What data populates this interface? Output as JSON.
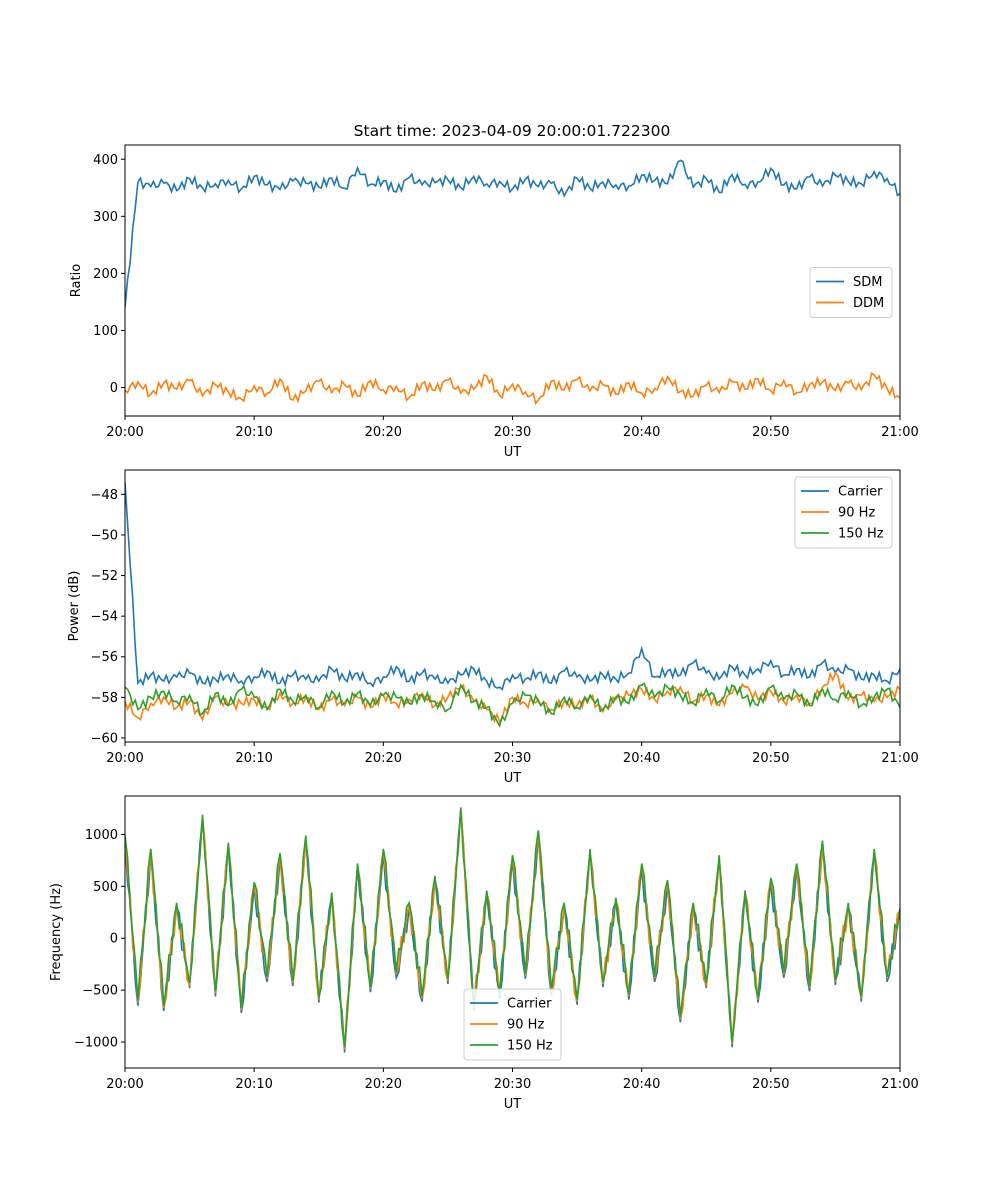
{
  "title": "Start time: 2023-04-09 20:00:01.722300",
  "colors": {
    "blue": "#1f77b4",
    "orange": "#ff7f0e",
    "green": "#2ca02c"
  },
  "chart_data": [
    {
      "type": "line",
      "xlabel": "UT",
      "ylabel": "Ratio",
      "xlim": [
        "20:00",
        "21:00"
      ],
      "ylim": [
        -50,
        425
      ],
      "xticks": [
        "20:00",
        "20:10",
        "20:20",
        "20:30",
        "20:40",
        "20:50",
        "21:00"
      ],
      "yticks": [
        0,
        100,
        200,
        300,
        400
      ],
      "legend": "center-right",
      "x": [
        "20:00",
        "20:01",
        "20:02",
        "20:03",
        "20:04",
        "20:05",
        "20:06",
        "20:07",
        "20:08",
        "20:09",
        "20:10",
        "20:11",
        "20:12",
        "20:13",
        "20:14",
        "20:15",
        "20:16",
        "20:17",
        "20:18",
        "20:19",
        "20:20",
        "20:21",
        "20:22",
        "20:23",
        "20:24",
        "20:25",
        "20:26",
        "20:27",
        "20:28",
        "20:29",
        "20:30",
        "20:31",
        "20:32",
        "20:33",
        "20:34",
        "20:35",
        "20:36",
        "20:37",
        "20:38",
        "20:39",
        "20:40",
        "20:41",
        "20:42",
        "20:43",
        "20:44",
        "20:45",
        "20:46",
        "20:47",
        "20:48",
        "20:49",
        "20:50",
        "20:51",
        "20:52",
        "20:53",
        "20:54",
        "20:55",
        "20:56",
        "20:57",
        "20:58",
        "20:59",
        "21:00"
      ],
      "series": [
        {
          "name": "SDM",
          "color": "#1f77b4",
          "values": [
            140,
            360,
            352,
            358,
            345,
            366,
            350,
            357,
            363,
            348,
            370,
            355,
            347,
            362,
            358,
            351,
            367,
            349,
            385,
            356,
            362,
            343,
            368,
            355,
            359,
            364,
            350,
            370,
            357,
            361,
            348,
            365,
            352,
            358,
            336,
            367,
            349,
            360,
            355,
            353,
            372,
            363,
            357,
            398,
            351,
            366,
            342,
            373,
            356,
            360,
            384,
            355,
            348,
            369,
            353,
            372,
            361,
            357,
            378,
            366,
            340
          ]
        },
        {
          "name": "DDM",
          "color": "#ff7f0e",
          "values": [
            -5,
            10,
            -12,
            8,
            -3,
            12,
            -15,
            5,
            -8,
            -20,
            3,
            -10,
            15,
            -22,
            -6,
            11,
            -9,
            5,
            -15,
            12,
            -4,
            2,
            -18,
            7,
            -5,
            13,
            -10,
            -3,
            20,
            -14,
            6,
            -8,
            -22,
            11,
            -4,
            14,
            -6,
            5,
            -12,
            8,
            -10,
            -2,
            19,
            -7,
            -15,
            4,
            -9,
            10,
            -3,
            15,
            -6,
            12,
            -9,
            5,
            10,
            -5,
            8,
            -4,
            22,
            -2,
            -18
          ]
        }
      ]
    },
    {
      "type": "line",
      "xlabel": "UT",
      "ylabel": "Power (dB)",
      "xlim": [
        "20:00",
        "21:00"
      ],
      "ylim": [
        -60.2,
        -46.8
      ],
      "xticks": [
        "20:00",
        "20:10",
        "20:20",
        "20:30",
        "20:40",
        "20:50",
        "21:00"
      ],
      "yticks": [
        -48,
        -50,
        -52,
        -54,
        -56,
        -58,
        -60
      ],
      "legend": "top-right",
      "x": [
        "20:00",
        "20:01",
        "20:02",
        "20:03",
        "20:04",
        "20:05",
        "20:06",
        "20:07",
        "20:08",
        "20:09",
        "20:10",
        "20:11",
        "20:12",
        "20:13",
        "20:14",
        "20:15",
        "20:16",
        "20:17",
        "20:18",
        "20:19",
        "20:20",
        "20:21",
        "20:22",
        "20:23",
        "20:24",
        "20:25",
        "20:26",
        "20:27",
        "20:28",
        "20:29",
        "20:30",
        "20:31",
        "20:32",
        "20:33",
        "20:34",
        "20:35",
        "20:36",
        "20:37",
        "20:38",
        "20:39",
        "20:40",
        "20:41",
        "20:42",
        "20:43",
        "20:44",
        "20:45",
        "20:46",
        "20:47",
        "20:48",
        "20:49",
        "20:50",
        "20:51",
        "20:52",
        "20:53",
        "20:54",
        "20:55",
        "20:56",
        "20:57",
        "20:58",
        "20:59",
        "21:00"
      ],
      "series": [
        {
          "name": "Carrier",
          "color": "#1f77b4",
          "values": [
            -47.4,
            -57.3,
            -56.9,
            -57.2,
            -57.0,
            -56.8,
            -57.3,
            -57.1,
            -56.9,
            -57.2,
            -57.0,
            -56.7,
            -57.3,
            -56.9,
            -57.1,
            -57.2,
            -56.6,
            -57.1,
            -56.8,
            -57.3,
            -57.0,
            -56.5,
            -57.2,
            -56.8,
            -57.1,
            -57.3,
            -56.9,
            -56.6,
            -57.2,
            -57.5,
            -56.9,
            -57.1,
            -56.8,
            -57.3,
            -56.7,
            -57.0,
            -57.2,
            -56.9,
            -57.1,
            -56.8,
            -55.6,
            -57.0,
            -56.7,
            -56.9,
            -56.3,
            -56.8,
            -57.1,
            -56.5,
            -56.9,
            -56.6,
            -56.2,
            -56.9,
            -56.6,
            -57.0,
            -56.3,
            -56.8,
            -56.6,
            -57.1,
            -56.9,
            -57.2,
            -56.6
          ]
        },
        {
          "name": "90 Hz",
          "color": "#ff7f0e",
          "values": [
            -58.2,
            -59.0,
            -58.3,
            -58.0,
            -58.5,
            -58.2,
            -59.1,
            -58.0,
            -58.4,
            -58.3,
            -58.1,
            -58.5,
            -57.8,
            -58.3,
            -58.0,
            -58.6,
            -58.1,
            -58.4,
            -58.0,
            -58.5,
            -57.9,
            -58.3,
            -58.1,
            -57.8,
            -58.4,
            -58.0,
            -57.5,
            -58.2,
            -58.6,
            -59.2,
            -58.0,
            -58.3,
            -58.1,
            -58.6,
            -58.2,
            -58.4,
            -58.0,
            -58.7,
            -58.1,
            -57.9,
            -57.6,
            -58.1,
            -57.7,
            -57.5,
            -58.2,
            -57.9,
            -58.4,
            -57.8,
            -57.5,
            -58.1,
            -57.7,
            -58.2,
            -57.9,
            -58.3,
            -57.5,
            -56.8,
            -58.1,
            -57.9,
            -58.2,
            -58.0,
            -57.6
          ]
        },
        {
          "name": "150 Hz",
          "color": "#2ca02c",
          "values": [
            -57.5,
            -58.6,
            -58.0,
            -57.7,
            -58.2,
            -57.9,
            -58.8,
            -57.8,
            -58.4,
            -57.6,
            -58.0,
            -58.6,
            -57.6,
            -58.2,
            -57.9,
            -58.5,
            -57.7,
            -58.3,
            -57.8,
            -58.4,
            -57.9,
            -58.0,
            -58.3,
            -57.9,
            -58.2,
            -58.6,
            -57.4,
            -58.2,
            -58.5,
            -59.4,
            -58.3,
            -57.9,
            -58.2,
            -58.8,
            -58.0,
            -58.5,
            -57.9,
            -58.6,
            -58.0,
            -58.3,
            -57.4,
            -58.0,
            -57.5,
            -57.9,
            -58.3,
            -57.6,
            -58.2,
            -57.4,
            -58.0,
            -58.4,
            -57.5,
            -58.1,
            -57.8,
            -58.4,
            -57.6,
            -58.1,
            -57.7,
            -58.4,
            -58.0,
            -57.6,
            -58.5
          ]
        }
      ]
    },
    {
      "type": "line",
      "xlabel": "UT",
      "ylabel": "Frequency (Hz)",
      "xlim": [
        "20:00",
        "21:00"
      ],
      "ylim": [
        -1250,
        1370
      ],
      "xticks": [
        "20:00",
        "20:10",
        "20:20",
        "20:30",
        "20:40",
        "20:50",
        "21:00"
      ],
      "yticks": [
        1000,
        500,
        0,
        -500,
        -1000
      ],
      "legend": "bottom-center",
      "x": [
        "20:00",
        "20:01",
        "20:02",
        "20:03",
        "20:04",
        "20:05",
        "20:06",
        "20:07",
        "20:08",
        "20:09",
        "20:10",
        "20:11",
        "20:12",
        "20:13",
        "20:14",
        "20:15",
        "20:16",
        "20:17",
        "20:18",
        "20:19",
        "20:20",
        "20:21",
        "20:22",
        "20:23",
        "20:24",
        "20:25",
        "20:26",
        "20:27",
        "20:28",
        "20:29",
        "20:30",
        "20:31",
        "20:32",
        "20:33",
        "20:34",
        "20:35",
        "20:36",
        "20:37",
        "20:38",
        "20:39",
        "20:40",
        "20:41",
        "20:42",
        "20:43",
        "20:44",
        "20:45",
        "20:46",
        "20:47",
        "20:48",
        "20:49",
        "20:50",
        "20:51",
        "20:52",
        "20:53",
        "20:54",
        "20:55",
        "20:56",
        "20:57",
        "20:58",
        "20:59",
        "21:00"
      ],
      "series": [
        {
          "name": "Carrier",
          "color": "#1f77b4",
          "values": [
            950,
            -650,
            820,
            -700,
            300,
            -480,
            1150,
            -560,
            880,
            -720,
            500,
            -420,
            780,
            -460,
            950,
            -620,
            400,
            -1100,
            680,
            -520,
            820,
            -380,
            300,
            -610,
            560,
            -440,
            1220,
            -700,
            420,
            -580,
            760,
            -390,
            1000,
            -550,
            300,
            -640,
            820,
            -470,
            350,
            -590,
            680,
            -420,
            520,
            -810,
            300,
            -480,
            760,
            -1050,
            420,
            -620,
            540,
            -380,
            680,
            -510,
            900,
            -450,
            300,
            -610,
            820,
            -420,
            250
          ]
        },
        {
          "name": "90 Hz",
          "color": "#ff7f0e",
          "values": [
            970,
            -620,
            840,
            -670,
            320,
            -450,
            1170,
            -530,
            900,
            -690,
            520,
            -390,
            800,
            -430,
            970,
            -590,
            420,
            -1070,
            700,
            -490,
            840,
            -350,
            320,
            -580,
            580,
            -410,
            1240,
            -670,
            440,
            -550,
            780,
            -360,
            1020,
            -520,
            320,
            -610,
            840,
            -440,
            370,
            -560,
            700,
            -390,
            540,
            -780,
            320,
            -450,
            780,
            -1020,
            440,
            -590,
            560,
            -350,
            700,
            -480,
            920,
            -420,
            320,
            -580,
            840,
            -390,
            270
          ]
        },
        {
          "name": "150 Hz",
          "color": "#2ca02c",
          "values": [
            990,
            -600,
            860,
            -650,
            340,
            -430,
            1190,
            -510,
            920,
            -670,
            540,
            -370,
            820,
            -410,
            990,
            -570,
            440,
            -1050,
            720,
            -470,
            860,
            -330,
            340,
            -560,
            600,
            -390,
            1260,
            -650,
            460,
            -530,
            800,
            -340,
            1040,
            -500,
            340,
            -590,
            860,
            -420,
            390,
            -540,
            720,
            -370,
            560,
            -760,
            340,
            -430,
            800,
            -1000,
            460,
            -570,
            580,
            -330,
            720,
            -460,
            940,
            -400,
            340,
            -560,
            860,
            -370,
            290
          ]
        }
      ]
    }
  ]
}
